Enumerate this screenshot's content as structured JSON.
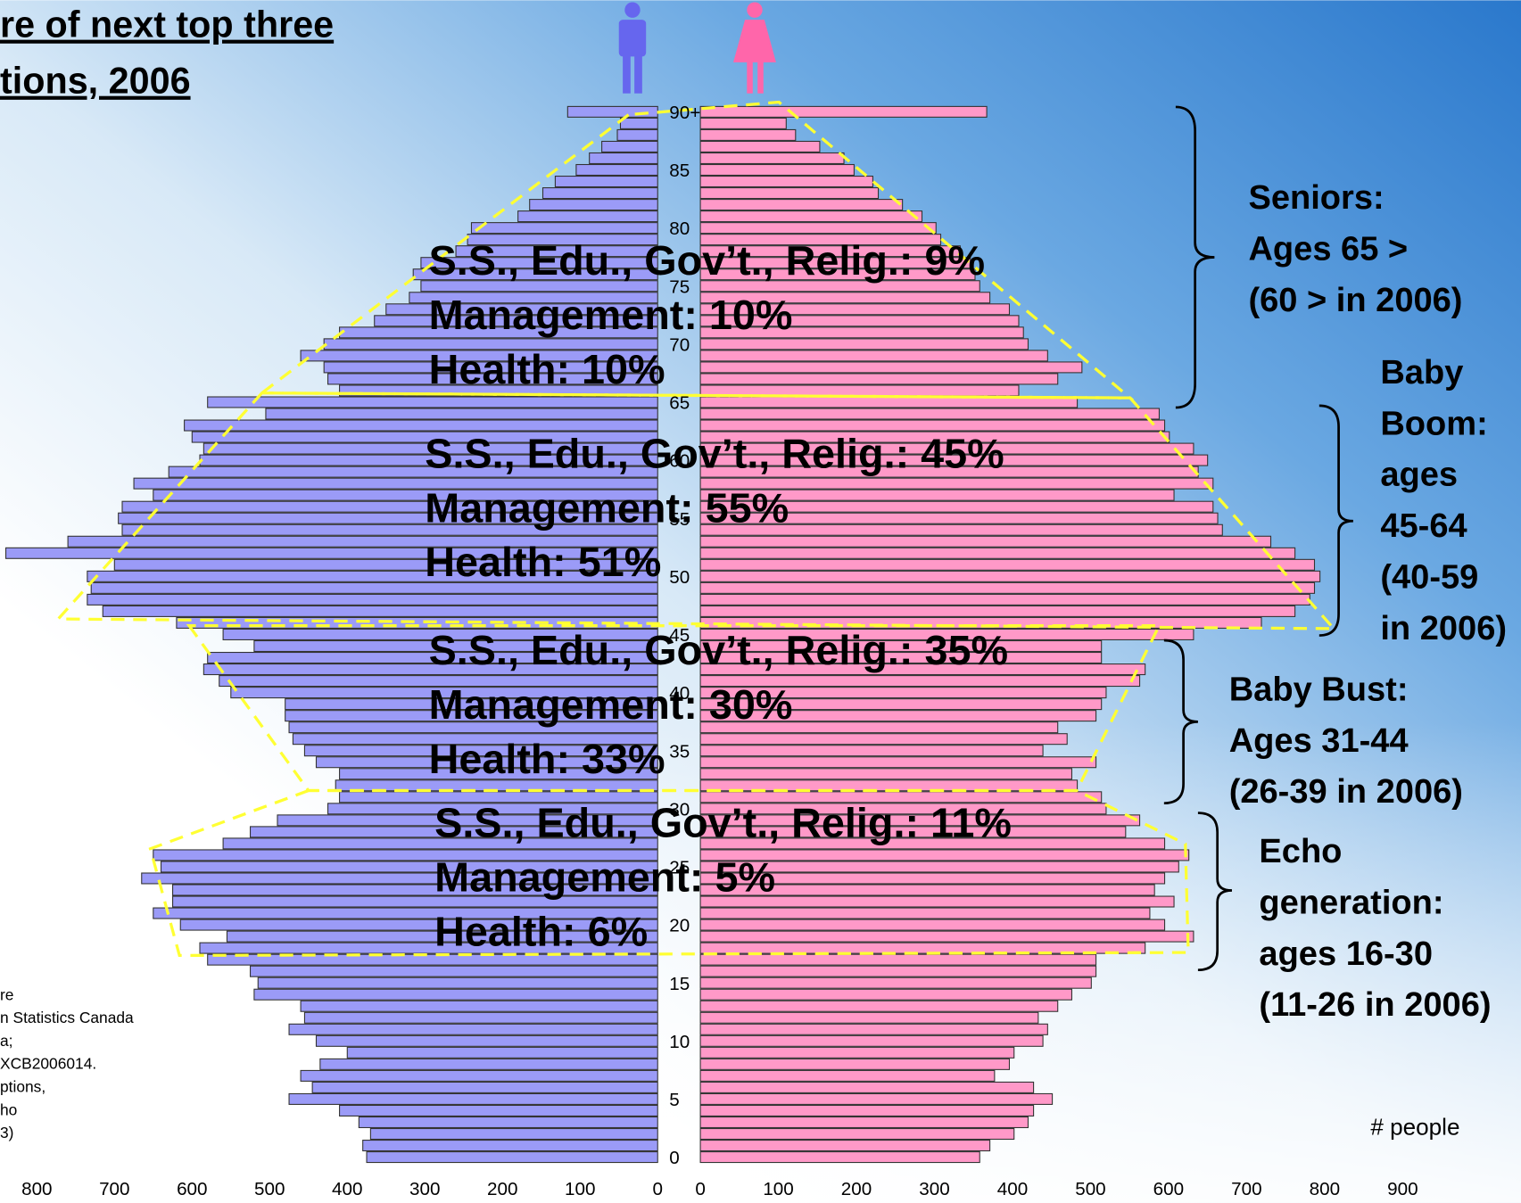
{
  "chart_data": {
    "type": "pyramid",
    "title_lines": [
      "re of next top three",
      "tions, 2006"
    ],
    "x_label": "# people",
    "categories": [
      "0",
      null,
      null,
      null,
      null,
      "5",
      null,
      null,
      null,
      null,
      "10",
      null,
      null,
      null,
      null,
      "15",
      null,
      null,
      null,
      null,
      "20",
      null,
      null,
      null,
      null,
      "25",
      null,
      null,
      null,
      null,
      "30",
      null,
      null,
      null,
      null,
      "35",
      null,
      null,
      null,
      null,
      "40",
      null,
      null,
      null,
      null,
      "45",
      null,
      null,
      null,
      null,
      "50",
      null,
      null,
      null,
      null,
      "55",
      null,
      null,
      null,
      null,
      "60",
      null,
      null,
      null,
      null,
      "65",
      null,
      null,
      null,
      null,
      "70",
      null,
      null,
      null,
      null,
      "75",
      null,
      null,
      null,
      null,
      "80",
      null,
      null,
      null,
      null,
      "85",
      null,
      null,
      null,
      null,
      "90+"
    ],
    "series": [
      {
        "color": "#9b9bf7",
        "xlim": [
          0,
          800
        ],
        "xticks": [
          0,
          100,
          200,
          300,
          400,
          500,
          600,
          700,
          800
        ],
        "values": [
          375,
          380,
          370,
          385,
          410,
          475,
          445,
          460,
          435,
          400,
          440,
          475,
          455,
          460,
          520,
          515,
          525,
          580,
          590,
          555,
          615,
          650,
          625,
          625,
          665,
          640,
          650,
          560,
          525,
          490,
          425,
          410,
          415,
          410,
          440,
          455,
          470,
          475,
          480,
          480,
          550,
          565,
          585,
          580,
          520,
          560,
          620,
          715,
          735,
          730,
          735,
          700,
          840,
          760,
          690,
          695,
          690,
          650,
          675,
          630,
          590,
          585,
          600,
          610,
          505,
          580,
          410,
          425,
          430,
          460,
          430,
          410,
          365,
          350,
          320,
          305,
          315,
          305,
          260,
          245,
          240,
          180,
          165,
          148,
          132,
          105,
          88,
          72,
          52,
          48,
          116
        ]
      },
      {
        "color": "#ff99c8",
        "xlim": [
          0,
          900
        ],
        "xticks": [
          0,
          100,
          200,
          300,
          400,
          500,
          600,
          700,
          800,
          900
        ],
        "values": [
          358,
          371,
          402,
          420,
          427,
          451,
          427,
          377,
          396,
          402,
          439,
          445,
          433,
          458,
          476,
          501,
          507,
          507,
          570,
          632,
          595,
          576,
          607,
          582,
          595,
          613,
          626,
          595,
          545,
          563,
          520,
          514,
          483,
          476,
          507,
          439,
          470,
          458,
          507,
          514,
          520,
          563,
          570,
          514,
          514,
          632,
          719,
          762,
          781,
          787,
          794,
          787,
          762,
          731,
          669,
          663,
          657,
          607,
          657,
          638,
          650,
          632,
          601,
          595,
          588,
          483,
          408,
          458,
          489,
          445,
          420,
          414,
          408,
          396,
          371,
          358,
          352,
          346,
          333,
          308,
          302,
          284,
          259,
          228,
          221,
          197,
          184,
          153,
          122,
          110,
          367
        ]
      }
    ],
    "annotations": [
      [
        "S.S., Edu., Gov’t., Relig.: 9%",
        "Management: 10%",
        "Health: 10%"
      ],
      [
        "S.S., Edu., Gov’t., Relig.: 45%",
        "Management: 55%",
        "Health: 51%"
      ],
      [
        "S.S., Edu., Gov’t., Relig.: 35%",
        "Management: 30%",
        "Health: 33%"
      ],
      [
        "S.S., Edu., Gov’t., Relig.: 11%",
        "Management: 5%",
        "Health: 6%"
      ]
    ],
    "groups": [
      [
        "Seniors:",
        "Ages 65 >",
        "(60 > in 2006)"
      ],
      [
        "Baby",
        "Boom:",
        "ages",
        "45-64",
        "(40-59",
        "in 2006)"
      ],
      [
        "Baby Bust:",
        "Ages 31-44",
        "(26-39 in 2006)"
      ],
      [
        "Echo",
        "generation:",
        "ages 16-30",
        "(11-26 in 2006)"
      ]
    ],
    "source_lines": [
      "re",
      "n Statistics Canada",
      "a;",
      "XCB2006014.",
      "ptions,",
      "ho",
      "3)"
    ]
  }
}
